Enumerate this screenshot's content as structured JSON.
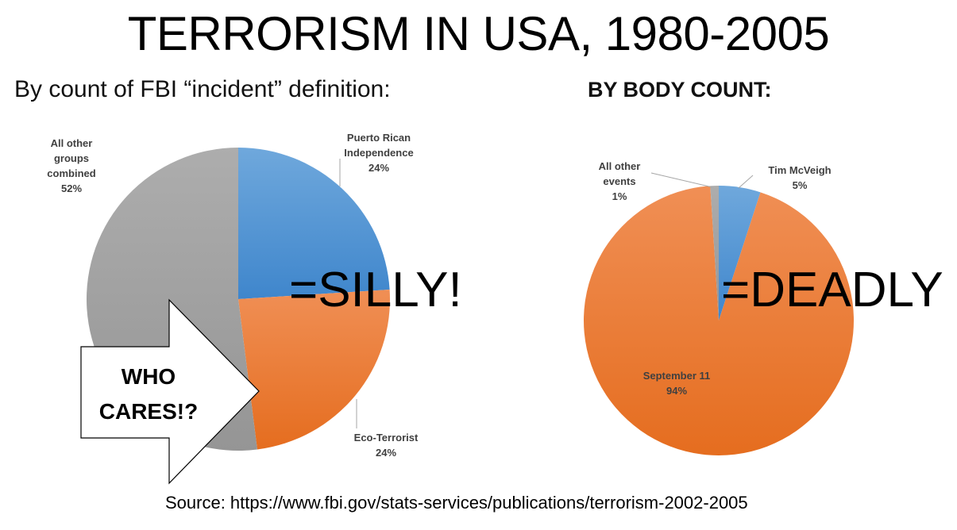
{
  "title": "TERRORISM IN USA, 1980-2005",
  "subtitle_left": "By count of FBI “incident” definition:",
  "subtitle_right": "BY BODY COUNT:",
  "source": "Source: https://www.fbi.gov/stats-services/publications/terrorism-2002-2005",
  "annotations": {
    "silly": "=SILLY!",
    "deadly": "=DEADLY",
    "arrow_line1": "WHO",
    "arrow_line2": "CARES!?"
  },
  "colors": {
    "blue": "#5b9bd5",
    "orange": "#ed7d31",
    "gray": "#a5a5a5"
  },
  "chart_data": [
    {
      "type": "pie",
      "title": "By count of FBI “incident” definition:",
      "slices": [
        {
          "label": "Puerto Rican Independence",
          "label_lines": [
            "Puerto Rican",
            "Independence"
          ],
          "value": 24,
          "value_label": "24%",
          "color": "#5b9bd5"
        },
        {
          "label": "Eco-Terrorist",
          "label_lines": [
            "Eco-Terrorist"
          ],
          "value": 24,
          "value_label": "24%",
          "color": "#ed7d31"
        },
        {
          "label": "All other groups combined",
          "label_lines": [
            "All other",
            "groups",
            "combined"
          ],
          "value": 52,
          "value_label": "52%",
          "color": "#a5a5a5"
        }
      ]
    },
    {
      "type": "pie",
      "title": "BY BODY COUNT:",
      "slices": [
        {
          "label": "Tim McVeigh",
          "label_lines": [
            "Tim McVeigh"
          ],
          "value": 5,
          "value_label": "5%",
          "color": "#5b9bd5"
        },
        {
          "label": "September 11",
          "label_lines": [
            "September 11"
          ],
          "value": 94,
          "value_label": "94%",
          "color": "#ed7d31"
        },
        {
          "label": "All other events",
          "label_lines": [
            "All other",
            "events"
          ],
          "value": 1,
          "value_label": "1%",
          "color": "#a5a5a5"
        }
      ]
    }
  ]
}
